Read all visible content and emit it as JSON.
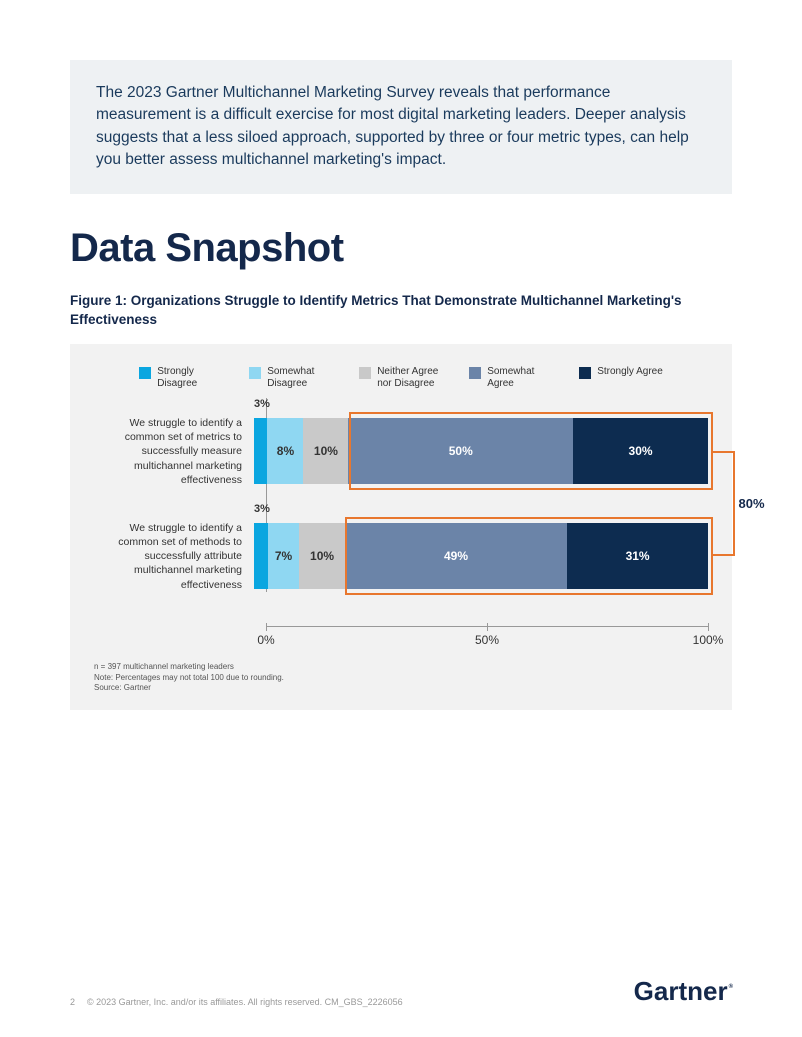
{
  "intro": "The 2023 Gartner Multichannel Marketing Survey reveals that performance measurement is a difficult exercise for most digital marketing leaders. Deeper analysis suggests that a less siloed approach, supported by three or four metric types, can help you better assess multichannel marketing's impact.",
  "section_title": "Data Snapshot",
  "figure_title": "Figure 1: Organizations Struggle to Identify Metrics That Demonstrate Multichannel Marketing's Effectiveness",
  "chart": {
    "type": "stacked-bar-horizontal",
    "background_color": "#f2f2f2",
    "highlight_border_color": "#e8772e",
    "legend": [
      {
        "label": "Strongly Disagree",
        "color": "#0aa6e0"
      },
      {
        "label": "Somewhat Disagree",
        "color": "#8fd7f2"
      },
      {
        "label": "Neither Agree nor Disagree",
        "color": "#c9c9c9"
      },
      {
        "label": "Somewhat Agree",
        "color": "#6b84a8"
      },
      {
        "label": "Strongly Agree",
        "color": "#0d2c50"
      }
    ],
    "rows": [
      {
        "label": "We struggle to identify a common set of metrics to successfully measure multichannel marketing effectiveness",
        "tick_value": "3%",
        "segments": [
          {
            "value": 3,
            "label": "",
            "color": "#0aa6e0",
            "text_color": "#333"
          },
          {
            "value": 8,
            "label": "8%",
            "color": "#8fd7f2",
            "text_color": "#333"
          },
          {
            "value": 10,
            "label": "10%",
            "color": "#c9c9c9",
            "text_color": "#333"
          },
          {
            "value": 50,
            "label": "50%",
            "color": "#6b84a8",
            "text_color": "#ffffff"
          },
          {
            "value": 30,
            "label": "30%",
            "color": "#0d2c50",
            "text_color": "#ffffff"
          }
        ],
        "highlight_start_pct": 21,
        "highlight_end_pct": 101
      },
      {
        "label": "We struggle to identify a common set of methods to successfully attribute multichannel marketing effectiveness",
        "tick_value": "3%",
        "segments": [
          {
            "value": 3,
            "label": "",
            "color": "#0aa6e0",
            "text_color": "#333"
          },
          {
            "value": 7,
            "label": "7%",
            "color": "#8fd7f2",
            "text_color": "#333"
          },
          {
            "value": 10,
            "label": "10%",
            "color": "#c9c9c9",
            "text_color": "#333"
          },
          {
            "value": 49,
            "label": "49%",
            "color": "#6b84a8",
            "text_color": "#ffffff"
          },
          {
            "value": 31,
            "label": "31%",
            "color": "#0d2c50",
            "text_color": "#ffffff"
          }
        ],
        "highlight_start_pct": 20,
        "highlight_end_pct": 101
      }
    ],
    "callout": "80%",
    "axis": {
      "ticks": [
        {
          "pos": 0,
          "label": "0%"
        },
        {
          "pos": 50,
          "label": "50%"
        },
        {
          "pos": 100,
          "label": "100%"
        }
      ]
    },
    "footnotes": [
      "n = 397 multichannel marketing leaders",
      "Note: Percentages may not total 100 due to rounding.",
      "Source: Gartner"
    ]
  },
  "footer": {
    "page": "2",
    "copyright": "© 2023 Gartner, Inc. and/or its affiliates. All rights reserved. CM_GBS_2226056",
    "brand": "Gartner"
  }
}
